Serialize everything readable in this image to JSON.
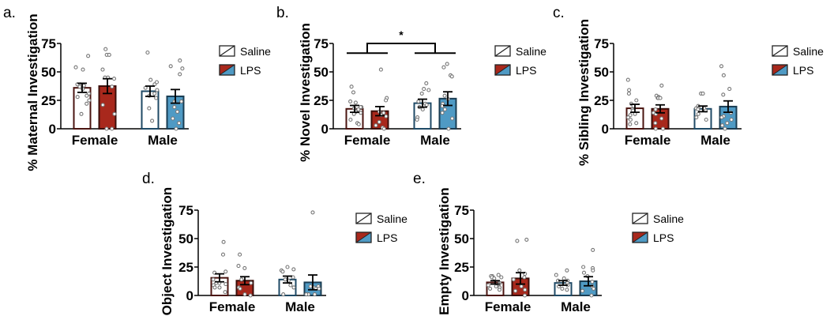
{
  "colors": {
    "saline_female_edge": "#4a1410",
    "saline_male_edge": "#1f4a66",
    "lps_female_fill": "#a8281c",
    "lps_male_fill": "#4f9ac4",
    "point_stroke": "#777777",
    "axis": "#000000"
  },
  "legend": {
    "items": [
      {
        "label": "Saline",
        "icon": "saline-swatch-icon"
      },
      {
        "label": "LPS",
        "icon": "lps-swatch-icon"
      }
    ]
  },
  "chart_data": [
    {
      "panel": "a.",
      "type": "bar",
      "ylabel": "% Maternal Investigation",
      "yticks": [
        "0",
        "25",
        "50",
        "75"
      ],
      "ylim": [
        0,
        75
      ],
      "categories": [
        "Female",
        "Male"
      ],
      "series": [
        {
          "name": "Saline",
          "values": [
            36,
            33
          ],
          "sem": [
            4,
            4.5
          ]
        },
        {
          "name": "LPS",
          "values": [
            37.5,
            28.5
          ],
          "sem": [
            6.5,
            6
          ]
        }
      ],
      "points": {
        "Female_Saline": [
          64,
          54,
          52,
          39,
          38,
          38,
          39,
          37,
          35,
          31,
          29,
          28,
          25,
          22,
          13
        ],
        "Female_LPS": [
          70,
          65,
          65,
          52,
          45,
          45,
          44,
          37,
          21,
          13,
          0,
          0
        ],
        "Male_Saline": [
          67,
          43,
          41,
          39,
          36,
          34,
          31,
          29,
          27,
          18,
          7
        ],
        "Male_LPS": [
          60,
          55,
          53,
          48,
          24,
          24,
          19,
          15,
          9,
          5,
          0
        ]
      },
      "annotation": null
    },
    {
      "panel": "b.",
      "type": "bar",
      "ylabel": "% Novel Investigation",
      "yticks": [
        "0",
        "25",
        "50",
        "75"
      ],
      "ylim": [
        0,
        75
      ],
      "categories": [
        "Female",
        "Male"
      ],
      "series": [
        {
          "name": "Saline",
          "values": [
            17.5,
            22.5
          ],
          "sem": [
            3,
            3.5
          ]
        },
        {
          "name": "LPS",
          "values": [
            15.5,
            26.5
          ],
          "sem": [
            4,
            6
          ]
        }
      ],
      "points": {
        "Female_Saline": [
          37,
          32,
          24,
          23,
          19,
          19,
          18,
          17,
          15,
          14,
          13,
          8,
          5,
          4
        ],
        "Female_LPS": [
          52,
          27,
          25,
          15,
          14,
          12,
          11,
          6,
          3,
          1,
          0
        ],
        "Male_Saline": [
          40,
          35,
          34,
          31,
          24,
          22,
          21,
          19,
          17,
          10,
          8
        ],
        "Male_LPS": [
          57,
          54,
          47,
          46,
          29,
          26,
          22,
          20,
          17,
          14,
          9,
          0
        ]
      },
      "annotation": {
        "text": "*",
        "type": "bracket",
        "between": [
          "Female",
          "Male"
        ]
      }
    },
    {
      "panel": "c.",
      "type": "bar",
      "ylabel": "% Sibling Investigation",
      "yticks": [
        "0",
        "25",
        "50",
        "75"
      ],
      "ylim": [
        0,
        75
      ],
      "categories": [
        "Female",
        "Male"
      ],
      "series": [
        {
          "name": "Saline",
          "values": [
            18,
            17.5
          ],
          "sem": [
            3.5,
            2.5
          ]
        },
        {
          "name": "LPS",
          "values": [
            17.5,
            19.5
          ],
          "sem": [
            3.5,
            5
          ]
        }
      ],
      "points": {
        "Female_Saline": [
          43,
          34,
          31,
          25,
          22,
          20,
          17,
          16,
          13,
          12,
          10,
          8,
          5,
          4
        ],
        "Female_LPS": [
          38,
          29,
          28,
          27,
          27,
          27,
          17,
          14,
          13,
          9,
          5,
          0,
          0
        ],
        "Male_Saline": [
          31,
          31,
          20,
          18,
          18,
          18,
          17,
          16,
          13,
          10,
          8
        ],
        "Male_LPS": [
          55,
          47,
          35,
          30,
          14,
          11,
          10,
          8,
          5,
          3,
          0
        ]
      },
      "annotation": null
    },
    {
      "panel": "d.",
      "type": "bar",
      "ylabel": "% Object Investigation",
      "yticks": [
        "0",
        "25",
        "50",
        "75"
      ],
      "ylim": [
        0,
        75
      ],
      "categories": [
        "Female",
        "Male"
      ],
      "series": [
        {
          "name": "Saline",
          "values": [
            15.5,
            14
          ],
          "sem": [
            3.5,
            3
          ]
        },
        {
          "name": "LPS",
          "values": [
            13,
            11.5
          ],
          "sem": [
            3.5,
            6.5
          ]
        }
      ],
      "points": {
        "Female_Saline": [
          47,
          36,
          21,
          20,
          14,
          11,
          11,
          10,
          9,
          7,
          7,
          3
        ],
        "Female_LPS": [
          36,
          26,
          24,
          14,
          11,
          7,
          6,
          1,
          0
        ],
        "Male_Saline": [
          23,
          22,
          21,
          25,
          16,
          14,
          13,
          9,
          7,
          1
        ],
        "Male_LPS": [
          73,
          8,
          8,
          7,
          6,
          6,
          1,
          1,
          1
        ]
      },
      "annotation": null
    },
    {
      "panel": "e.",
      "type": "bar",
      "ylabel": "% Empty Investigation",
      "yticks": [
        "0",
        "25",
        "50",
        "75"
      ],
      "ylim": [
        0,
        75
      ],
      "categories": [
        "Female",
        "Male"
      ],
      "series": [
        {
          "name": "Saline",
          "values": [
            11.5,
            11
          ],
          "sem": [
            1.5,
            2
          ]
        },
        {
          "name": "LPS",
          "values": [
            15,
            12.5
          ],
          "sem": [
            5,
            4
          ]
        }
      ],
      "points": {
        "Female_Saline": [
          18,
          17,
          17,
          16,
          16,
          15,
          11,
          10,
          9,
          8,
          7,
          6,
          5
        ],
        "Female_LPS": [
          49,
          48,
          22,
          19,
          16,
          14,
          8,
          5,
          4,
          0
        ],
        "Male_Saline": [
          22,
          18,
          15,
          13,
          13,
          11,
          9,
          8,
          6,
          5
        ],
        "Male_LPS": [
          40,
          25,
          24,
          22,
          20,
          17,
          12,
          8,
          6,
          4,
          0
        ]
      },
      "annotation": null
    }
  ]
}
